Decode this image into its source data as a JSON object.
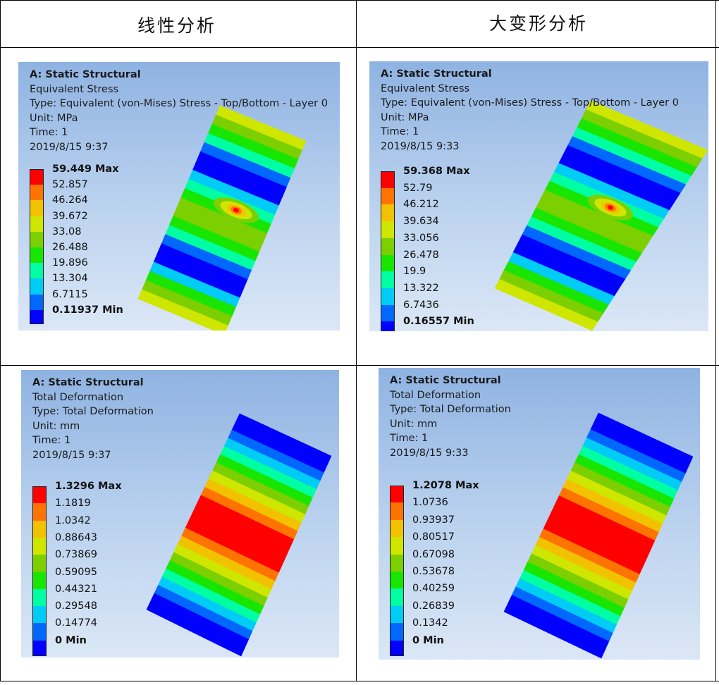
{
  "headers": {
    "linear": "线性分析",
    "large_deformation": "大变形分析"
  },
  "legend_colors": [
    "#0000ff",
    "#0067ff",
    "#00ccf6",
    "#00ffa3",
    "#19e600",
    "#7ccf00",
    "#cfe600",
    "#f2c200",
    "#ff7300",
    "#ff0000"
  ],
  "panels": [
    {
      "id": "stress-linear",
      "lines": [
        "A: Static Structural",
        "Equivalent Stress",
        "Type: Equivalent (von-Mises) Stress - Top/Bottom - Layer 0",
        "Unit: MPa",
        "Time: 1",
        "2019/8/15 9:37"
      ],
      "legend": [
        "59.449 Max",
        "52.857",
        "46.264",
        "39.672",
        "33.08",
        "26.488",
        "19.896",
        "13.304",
        "6.7115",
        "0.11937 Min"
      ],
      "result": "stress"
    },
    {
      "id": "stress-large",
      "lines": [
        "A: Static Structural",
        "Equivalent Stress",
        "Type: Equivalent (von-Mises) Stress - Top/Bottom - Layer 0",
        "Unit: MPa",
        "Time: 1",
        "2019/8/15 9:33"
      ],
      "legend": [
        "59.368 Max",
        "52.79",
        "46.212",
        "39.634",
        "33.056",
        "26.478",
        "19.9",
        "13.322",
        "6.7436",
        "0.16557 Min"
      ],
      "result": "stress"
    },
    {
      "id": "deform-linear",
      "lines": [
        "A: Static Structural",
        "Total Deformation",
        "Type: Total Deformation",
        "Unit: mm",
        "Time: 1",
        "2019/8/15 9:37"
      ],
      "legend": [
        "1.3296 Max",
        "1.1819",
        "1.0342",
        "0.88643",
        "0.73869",
        "0.59095",
        "0.44321",
        "0.29548",
        "0.14774",
        "0 Min"
      ],
      "result": "deformation"
    },
    {
      "id": "deform-large",
      "lines": [
        "A: Static Structural",
        "Total Deformation",
        "Type: Total Deformation",
        "Unit: mm",
        "Time: 1",
        "2019/8/15 9:33"
      ],
      "legend": [
        "1.2078 Max",
        "1.0736",
        "0.93937",
        "0.80517",
        "0.67098",
        "0.53678",
        "0.40259",
        "0.26839",
        "0.1342",
        "0 Min"
      ],
      "result": "deformation"
    }
  ]
}
